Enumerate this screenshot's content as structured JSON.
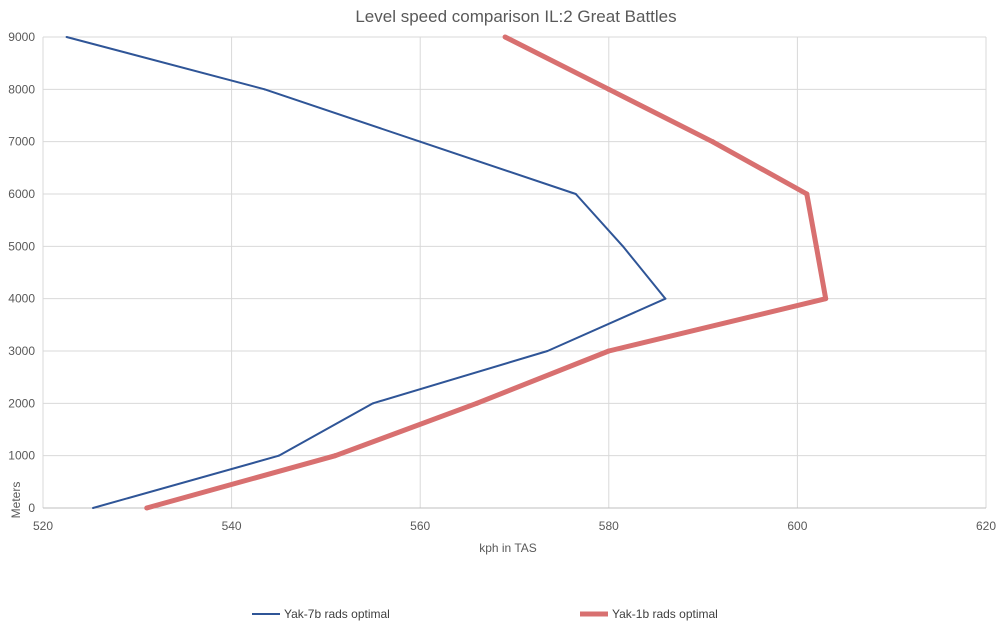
{
  "chart_data": {
    "type": "line",
    "title": "Level speed comparison IL:2 Great Battles",
    "xlabel": "kph in TAS",
    "ylabel": "Meters",
    "xlim": [
      520,
      620
    ],
    "ylim": [
      0,
      9000
    ],
    "x_ticks": [
      "520",
      "540",
      "560",
      "580",
      "600",
      "620"
    ],
    "y_ticks": [
      "0",
      "1000",
      "2000",
      "3000",
      "4000",
      "5000",
      "6000",
      "7000",
      "8000",
      "9000"
    ],
    "grid": true,
    "legend_position": "bottom",
    "series": [
      {
        "name": "Yak-7b rads optimal",
        "color": "#2f5597",
        "points": [
          {
            "x": 525.3,
            "y": 0
          },
          {
            "x": 545.0,
            "y": 1000
          },
          {
            "x": 555.0,
            "y": 2000
          },
          {
            "x": 573.5,
            "y": 3000
          },
          {
            "x": 586.0,
            "y": 4000
          },
          {
            "x": 581.5,
            "y": 5000
          },
          {
            "x": 576.5,
            "y": 6000
          },
          {
            "x": 560.0,
            "y": 7000
          },
          {
            "x": 543.5,
            "y": 8000
          },
          {
            "x": 522.5,
            "y": 9000
          }
        ]
      },
      {
        "name": "Yak-1b rads optimal",
        "color": "#d87070",
        "points": [
          {
            "x": 531.0,
            "y": 0
          },
          {
            "x": 551.0,
            "y": 1000
          },
          {
            "x": 566.0,
            "y": 2000
          },
          {
            "x": 580.0,
            "y": 3000
          },
          {
            "x": 603.0,
            "y": 4000
          },
          {
            "x": 602.0,
            "y": 5000
          },
          {
            "x": 601.0,
            "y": 6000
          },
          {
            "x": 591.0,
            "y": 7000
          },
          {
            "x": 580.0,
            "y": 8000
          },
          {
            "x": 569.0,
            "y": 9000
          }
        ]
      }
    ]
  }
}
